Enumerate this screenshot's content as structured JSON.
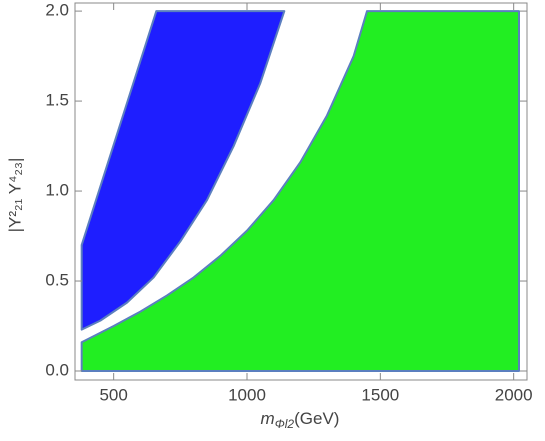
{
  "chart_data": {
    "type": "region",
    "xlabel": {
      "symbol": "m",
      "subscript": "Φl2",
      "unit": "(GeV)"
    },
    "ylabel": "|Y²₂₁ Y⁴₂₃|",
    "xlim": [
      355,
      2050
    ],
    "ylim": [
      -0.05,
      2.045
    ],
    "xticks": [
      500,
      1000,
      1500,
      2000
    ],
    "yticks": [
      {
        "value": 0,
        "label": "0.0"
      },
      0.5,
      {
        "value": 1,
        "label": "1.0"
      },
      1.5,
      {
        "value": 2,
        "label": "2.0"
      }
    ],
    "edge_color": "#5b7fbf",
    "regions": [
      {
        "color": "#1e1eff",
        "x": [
          380,
          380,
          660,
          1140,
          1050,
          950,
          850,
          750,
          650,
          550,
          450,
          380
        ],
        "y": [
          0.23,
          0.7,
          2.0,
          2.0,
          1.6,
          1.25,
          0.95,
          0.72,
          0.52,
          0.38,
          0.28,
          0.23
        ]
      },
      {
        "color": "#22ee22",
        "x": [
          380,
          500,
          600,
          700,
          800,
          900,
          1000,
          1100,
          1200,
          1300,
          1400,
          1450,
          2020,
          2020,
          380
        ],
        "y": [
          0.16,
          0.25,
          0.33,
          0.42,
          0.52,
          0.64,
          0.78,
          0.95,
          1.16,
          1.42,
          1.75,
          2.0,
          2.0,
          0,
          0
        ]
      }
    ]
  }
}
